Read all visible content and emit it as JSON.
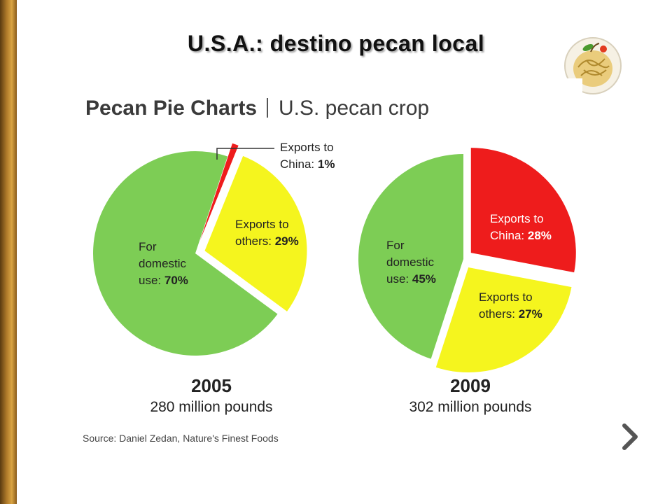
{
  "slide": {
    "title": "U.S.A.: destino pecan local"
  },
  "icons": {
    "logo": "pecan-logo-icon",
    "next": "chevron-right-icon"
  },
  "colors": {
    "domestic": "#7dcd55",
    "exports_others": "#f5f51e",
    "exports_china": "#ee1c1c"
  },
  "chart_data": [
    {
      "type": "pie",
      "title": "Pecan Pie Charts",
      "subtitle": "U.S. pecan crop",
      "year": "2005",
      "total": "280 million pounds",
      "slices": [
        {
          "label": [
            "Exports to",
            "China: 1%"
          ],
          "value": 1,
          "color": "#ee1c1c"
        },
        {
          "label": [
            "Exports to",
            "others: 29%"
          ],
          "value": 29,
          "color": "#f5f51e"
        },
        {
          "label": [
            "For",
            "domestic",
            "use: 70%"
          ],
          "value": 70,
          "color": "#7dcd55"
        }
      ],
      "source": "Source: Daniel Zedan, Nature's Finest Foods"
    },
    {
      "type": "pie",
      "year": "2009",
      "total": "302 million pounds",
      "slices": [
        {
          "label": [
            "Exports to",
            "China: 28%"
          ],
          "value": 28,
          "color": "#ee1c1c"
        },
        {
          "label": [
            "Exports to",
            "others: 27%"
          ],
          "value": 27,
          "color": "#f5f51e"
        },
        {
          "label": [
            "For",
            "domestic",
            "use: 45%"
          ],
          "value": 45,
          "color": "#7dcd55"
        }
      ]
    }
  ]
}
